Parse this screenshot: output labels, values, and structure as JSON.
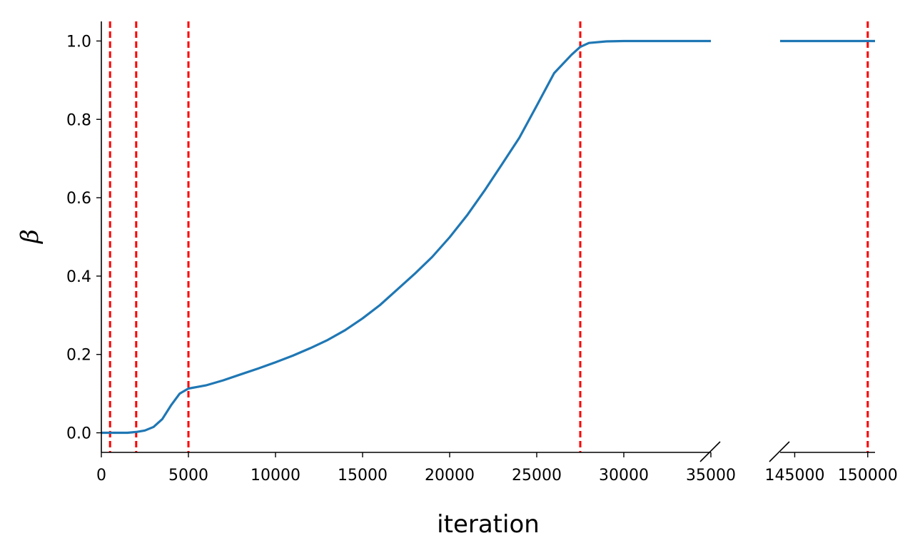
{
  "chart_data": {
    "type": "line",
    "xlabel": "iteration",
    "ylabel": "β",
    "ylim": [
      -0.05,
      1.05
    ],
    "broken_x_axis": true,
    "x_segments": [
      {
        "xlim": [
          0,
          35000
        ],
        "xticks": [
          0,
          5000,
          10000,
          15000,
          20000,
          25000,
          30000,
          35000
        ]
      },
      {
        "xlim": [
          144000,
          150500
        ],
        "xticks": [
          145000,
          150000
        ]
      }
    ],
    "yticks": [
      0.0,
      0.2,
      0.4,
      0.6,
      0.8,
      1.0
    ],
    "ytick_labels": [
      "0.0",
      "0.2",
      "0.4",
      "0.6",
      "0.8",
      "1.0"
    ],
    "xtick_labels": [
      "0",
      "5000",
      "10000",
      "15000",
      "20000",
      "25000",
      "30000",
      "35000",
      "145000",
      "150000"
    ],
    "vlines": {
      "color": "#ff0000",
      "style": "dashed",
      "x": [
        500,
        2000,
        5000,
        27500,
        150000
      ]
    },
    "series": [
      {
        "color": "#1f77b4",
        "x": [
          0,
          500,
          1000,
          1500,
          2000,
          2500,
          3000,
          3500,
          4000,
          4500,
          5000,
          5500,
          6000,
          7000,
          8000,
          9000,
          10000,
          11000,
          12000,
          13000,
          14000,
          15000,
          16000,
          17000,
          18000,
          19000,
          20000,
          21000,
          22000,
          23000,
          24000,
          25000,
          26000,
          27000,
          27500,
          28000,
          29000,
          30000,
          35000,
          144000,
          150500
        ],
        "y": [
          0.0,
          0.0,
          0.0,
          0.0,
          0.002,
          0.006,
          0.015,
          0.035,
          0.07,
          0.1,
          0.113,
          0.117,
          0.121,
          0.134,
          0.149,
          0.164,
          0.18,
          0.197,
          0.216,
          0.237,
          0.262,
          0.292,
          0.326,
          0.366,
          0.406,
          0.449,
          0.499,
          0.555,
          0.618,
          0.685,
          0.753,
          0.835,
          0.918,
          0.965,
          0.985,
          0.995,
          0.999,
          1.0,
          1.0,
          1.0,
          1.0
        ]
      }
    ]
  }
}
